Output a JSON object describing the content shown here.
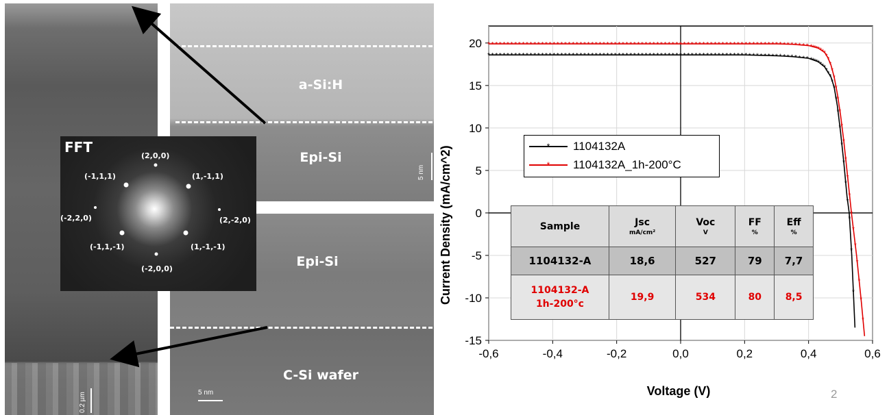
{
  "tem": {
    "layers": {
      "a_si_h": "a-Si:H",
      "epi_si_top": "Epi-Si",
      "epi_si_bottom": "Epi-Si",
      "c_si_wafer": "C-Si wafer"
    },
    "scale_right_top": "5 nm",
    "scale_right_bottom": "5 nm",
    "scale_left": "0.2 µm",
    "fft": {
      "title": "FFT",
      "spots": [
        "(2,0,0)",
        "(-1,1,1)",
        "(1,-1,1)",
        "(-2,2,0)",
        "(2,-2,0)",
        "(-1,1,-1)",
        "(1,-1,-1)",
        "(-2,0,0)"
      ]
    }
  },
  "chart_data": {
    "type": "line",
    "xlabel": "Voltage (V)",
    "ylabel": "Current Density (mA/cm^2)",
    "xlim": [
      -0.6,
      0.6
    ],
    "ylim": [
      -15,
      22
    ],
    "xticks": [
      "-0,6",
      "-0,4",
      "-0,2",
      "0,0",
      "0,2",
      "0,4",
      "0,6"
    ],
    "yticks": [
      "-15",
      "-10",
      "-5",
      "0",
      "5",
      "10",
      "15",
      "20"
    ],
    "grid": true,
    "legend_position": "top-left",
    "series": [
      {
        "name": "1104132A",
        "color": "#000000",
        "x": [
          -0.6,
          -0.4,
          -0.2,
          0.0,
          0.2,
          0.3,
          0.35,
          0.4,
          0.43,
          0.45,
          0.47,
          0.48,
          0.49,
          0.5,
          0.51,
          0.52,
          0.527,
          0.535,
          0.545
        ],
        "y": [
          18.6,
          18.6,
          18.6,
          18.6,
          18.6,
          18.5,
          18.4,
          18.2,
          17.8,
          17.2,
          16.0,
          14.8,
          12.6,
          9.5,
          6.0,
          2.0,
          0.0,
          -5.0,
          -13.5
        ]
      },
      {
        "name": "1104132A_1h-200°C",
        "color": "#e00000",
        "x": [
          -0.6,
          -0.4,
          -0.2,
          0.0,
          0.2,
          0.3,
          0.35,
          0.4,
          0.43,
          0.45,
          0.46,
          0.47,
          0.48,
          0.49,
          0.5,
          0.51,
          0.52,
          0.534,
          0.55,
          0.565,
          0.575
        ],
        "y": [
          19.9,
          19.9,
          19.9,
          19.9,
          19.9,
          19.9,
          19.85,
          19.7,
          19.4,
          18.9,
          18.3,
          17.4,
          16.0,
          14.0,
          11.5,
          8.5,
          5.0,
          0.0,
          -5.0,
          -10.5,
          -14.5
        ]
      }
    ],
    "page_number": "2"
  },
  "table": {
    "headers": [
      {
        "label": "Sample",
        "unit": ""
      },
      {
        "label": "Jsc",
        "unit": "mA/cm²"
      },
      {
        "label": "Voc",
        "unit": "V"
      },
      {
        "label": "FF",
        "unit": "%"
      },
      {
        "label": "Eff",
        "unit": "%"
      }
    ],
    "row1": [
      "1104132-A",
      "18,6",
      "527",
      "79",
      "7,7"
    ],
    "row2": {
      "sample_l1": "1104132-A",
      "sample_l2": "1h-200°c",
      "jsc": "19,9",
      "voc": "534",
      "ff": "80",
      "eff": "8,5"
    }
  }
}
